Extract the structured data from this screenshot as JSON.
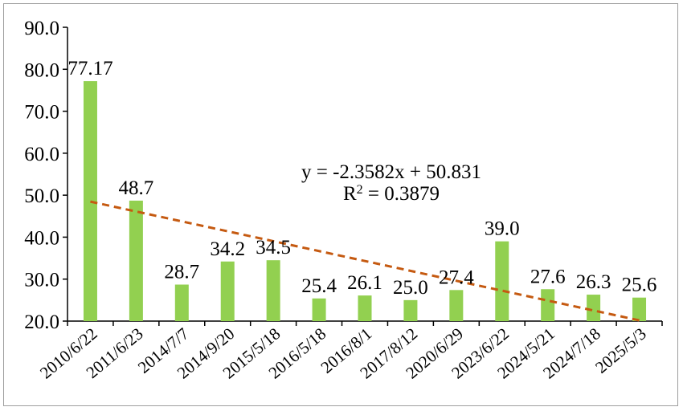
{
  "chart_data": {
    "type": "bar",
    "categories": [
      "2010/6/22",
      "2011/6/23",
      "2014/7/7",
      "2014/9/20",
      "2015/5/18",
      "2016/5/18",
      "2016/8/1",
      "2017/8/12",
      "2020/6/29",
      "2023/6/22",
      "2024/5/21",
      "2024/7/18",
      "2025/5/3"
    ],
    "values": [
      77.17,
      48.7,
      28.7,
      34.2,
      34.5,
      25.4,
      26.1,
      25.0,
      27.4,
      39.0,
      27.6,
      26.3,
      25.6
    ],
    "value_labels": [
      "77.17",
      "48.7",
      "28.7",
      "34.2",
      "34.5",
      "25.4",
      "26.1",
      "25.0",
      "27.4",
      "39.0",
      "27.6",
      "26.3",
      "25.6"
    ],
    "ylim": [
      20,
      90
    ],
    "yticks": [
      "20.0",
      "30.0",
      "40.0",
      "50.0",
      "60.0",
      "70.0",
      "80.0",
      "90.0"
    ],
    "title": "",
    "xlabel": "",
    "ylabel": "",
    "bar_color": "#92d050",
    "trendline": {
      "slope": -2.3582,
      "intercept": 50.831,
      "color": "#c55a11",
      "style": "dashed",
      "equation": "y = -2.3582x + 50.831",
      "r2_prefix": "R",
      "r2_sup": "2",
      "r2_value": " = 0.3879"
    }
  }
}
